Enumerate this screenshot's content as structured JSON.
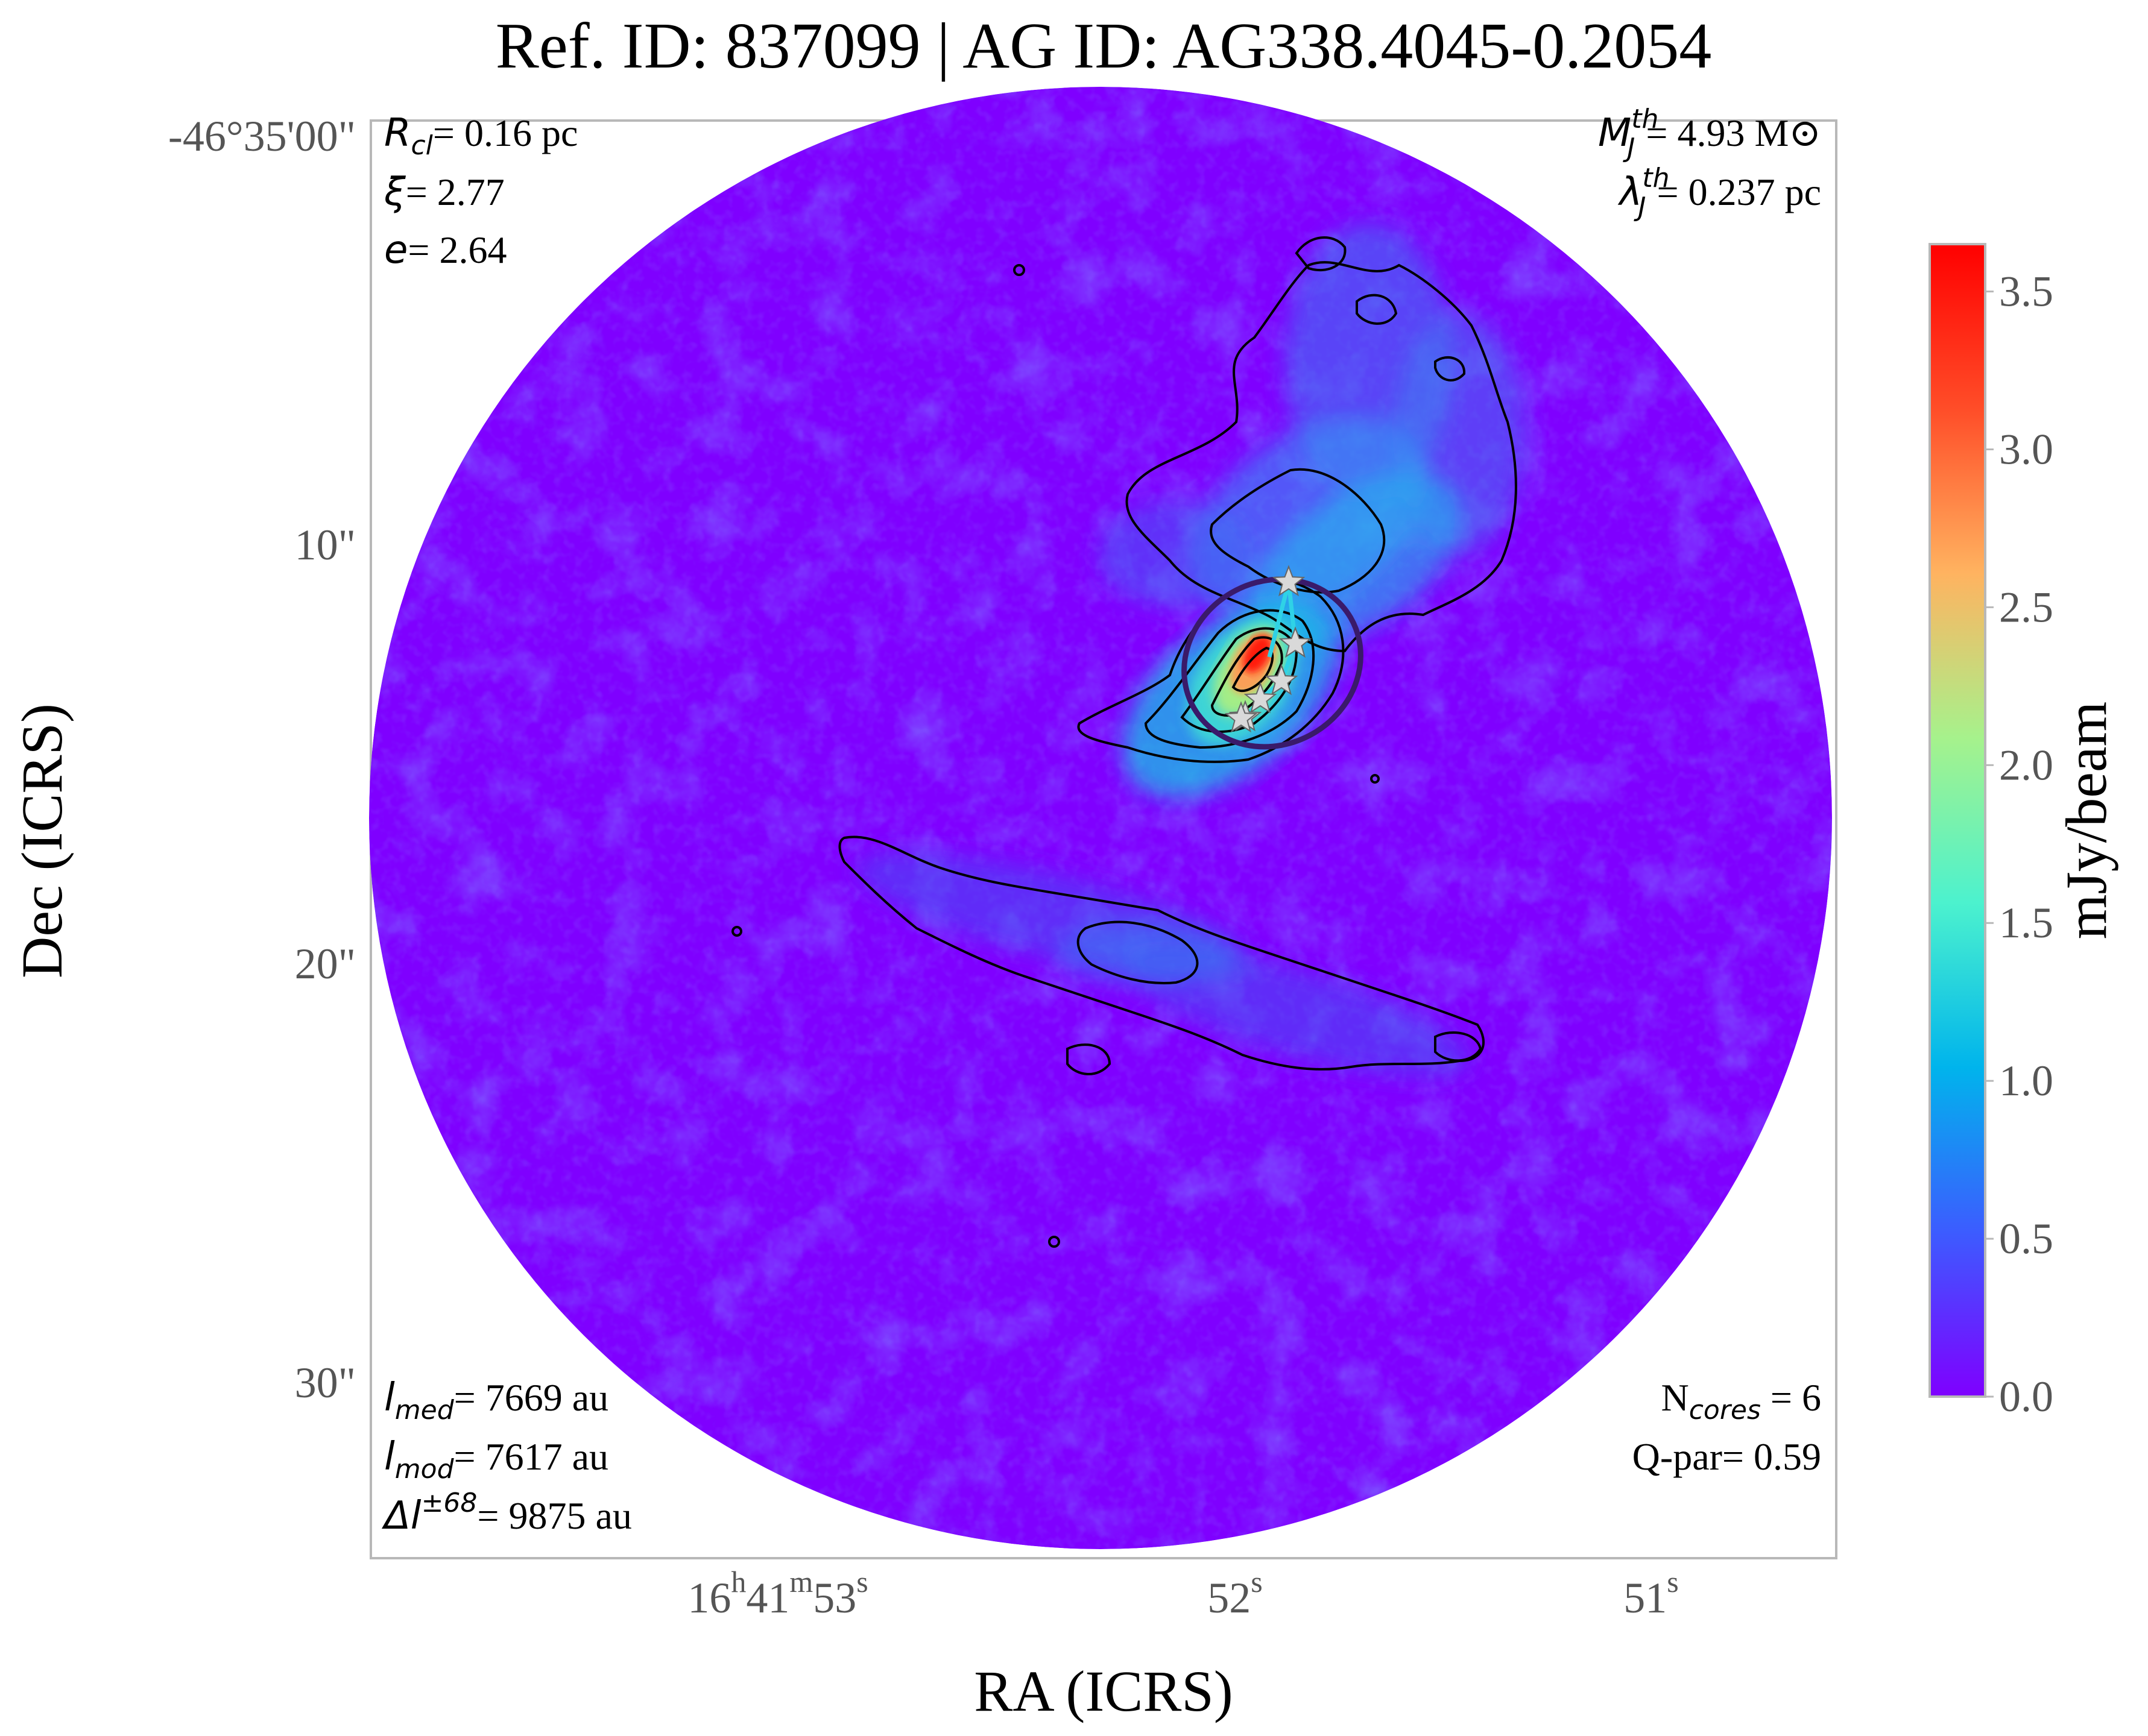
{
  "chart_data": {
    "type": "heatmap",
    "title": "Ref. ID: 837099 | AG ID: AG338.4045-0.2054",
    "xlabel": "RA (ICRS)",
    "ylabel": "Dec (ICRS)",
    "x_ticks": [
      {
        "h": "16",
        "m": "41",
        "s": "53"
      },
      {
        "s": "52"
      },
      {
        "s": "51"
      }
    ],
    "y_ticks": [
      "-46°35'00\"",
      "10\"",
      "20\"",
      "30\""
    ],
    "colorbar": {
      "label": "mJy/beam",
      "ticks": [
        "0.0",
        "0.5",
        "1.0",
        "1.5",
        "2.0",
        "2.5",
        "3.0",
        "3.5"
      ],
      "range": [
        0.0,
        3.65
      ],
      "colormap": "rainbow",
      "colors": [
        "#7f00ff",
        "#3c5cff",
        "#00b4ec",
        "#4cf2ce",
        "#a6f28c",
        "#ffb360",
        "#ff4d28",
        "#ff0000"
      ]
    },
    "background_color": "#7f00ff",
    "contour_color": "#000000",
    "ellipse_color": "#3a1a6a",
    "mst_edge_color": "#2fd2e6",
    "core_marker": "star",
    "core_marker_color": "#d9d9d9",
    "n_cores": 6,
    "annotations": {
      "top_left": [
        {
          "sym": "R",
          "sub": "cl",
          "sup": "",
          "text": "= 0.16 pc"
        },
        {
          "sym": "ξ",
          "sub": "",
          "sup": "",
          "text": "= 2.77"
        },
        {
          "sym": "e",
          "sub": "",
          "sup": "",
          "text": "= 2.64"
        }
      ],
      "top_right": [
        {
          "sym": "M",
          "sub": "J",
          "sup": "th",
          "text": "= 4.93 M⊙"
        },
        {
          "sym": "λ",
          "sub": "J",
          "sup": "th",
          "text": "= 0.237 pc"
        }
      ],
      "bottom_left": [
        {
          "sym": "l",
          "sub": "med",
          "sup": "",
          "text": "= 7669 au"
        },
        {
          "sym": "l",
          "sub": "mod",
          "sup": "",
          "text": "= 7617 au"
        },
        {
          "sym": "Δl",
          "sub": "",
          "sup": "±68",
          "text": "= 9875 au"
        }
      ],
      "bottom_right": [
        {
          "pre": "N",
          "sub": "cores",
          "text": " = 6"
        },
        {
          "pre": "Q-par",
          "sub": "",
          "text": "= 0.59"
        }
      ]
    }
  }
}
